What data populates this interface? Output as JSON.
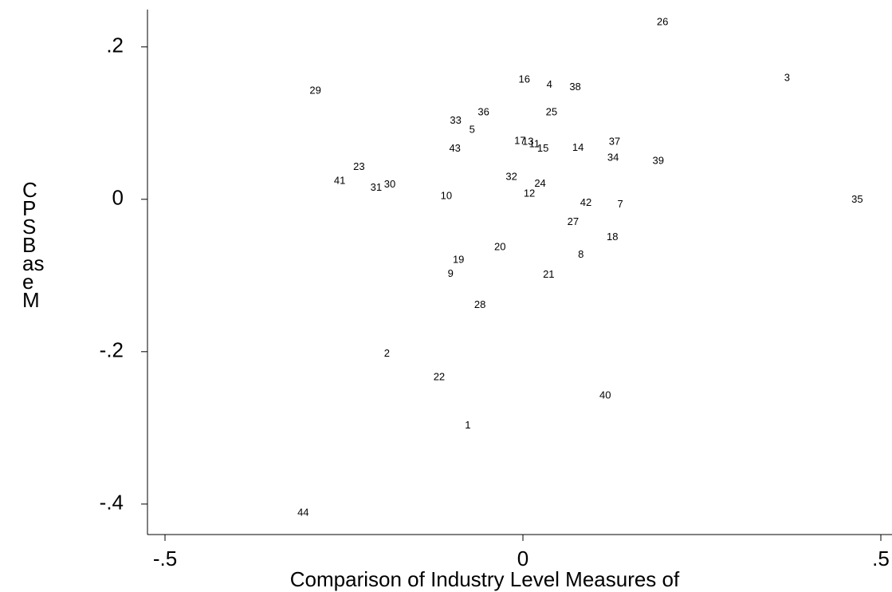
{
  "chart_data": {
    "type": "scatter",
    "xlabel": "Comparison of Industry Level Measures of",
    "ylabel_lines": [
      "C",
      "P",
      "S",
      "B",
      "as",
      "e",
      "M"
    ],
    "xlim": [
      -0.5245,
      0.5156
    ],
    "ylim": [
      -0.44,
      0.249
    ],
    "xticks": [
      {
        "value": -0.5,
        "label": "-.5"
      },
      0,
      {
        "value": 0.5,
        "label": ".5"
      }
    ],
    "yticks": [
      {
        "value": -0.4,
        "label": "-.4"
      },
      {
        "value": -0.2,
        "label": "-.2"
      },
      0,
      {
        "value": 0.2,
        "label": ".2"
      }
    ],
    "color": "#000000",
    "series": [
      {
        "labels": [
          "26",
          "3",
          "29",
          "16",
          "4",
          "38",
          "36",
          "25",
          "33",
          "5",
          "17",
          "13",
          "11",
          "15",
          "43",
          "14",
          "37",
          "34",
          "39",
          "23",
          "41",
          "31",
          "30",
          "32",
          "24",
          "10",
          "12",
          "42",
          "7",
          "35",
          "27",
          "18",
          "20",
          "8",
          "19",
          "9",
          "21",
          "28",
          "2",
          "22",
          "40",
          "1",
          "44"
        ],
        "x": [
          0.195,
          0.369,
          -0.29,
          0.002,
          0.037,
          0.073,
          -0.055,
          0.04,
          -0.094,
          -0.071,
          -0.004,
          0.007,
          0.016,
          0.028,
          -0.095,
          0.077,
          0.128,
          0.126,
          0.189,
          -0.229,
          -0.256,
          -0.205,
          -0.186,
          -0.016,
          0.024,
          -0.107,
          0.009,
          0.088,
          0.136,
          0.467,
          0.07,
          0.125,
          -0.032,
          0.081,
          -0.09,
          -0.101,
          0.036,
          -0.06,
          -0.19,
          -0.117,
          0.115,
          -0.077,
          -0.307
        ],
        "y": [
          0.232,
          0.159,
          0.142,
          0.157,
          0.15,
          0.147,
          0.114,
          0.114,
          0.103,
          0.091,
          0.076,
          0.075,
          0.072,
          0.066,
          0.066,
          0.067,
          0.075,
          0.054,
          0.05,
          0.042,
          0.024,
          0.015,
          0.019,
          0.029,
          0.02,
          0.004,
          0.007,
          -0.005,
          -0.007,
          -0.001,
          -0.03,
          -0.05,
          -0.063,
          -0.073,
          -0.08,
          -0.098,
          -0.099,
          -0.139,
          -0.203,
          -0.234,
          -0.258,
          -0.297,
          -0.412
        ]
      }
    ]
  }
}
